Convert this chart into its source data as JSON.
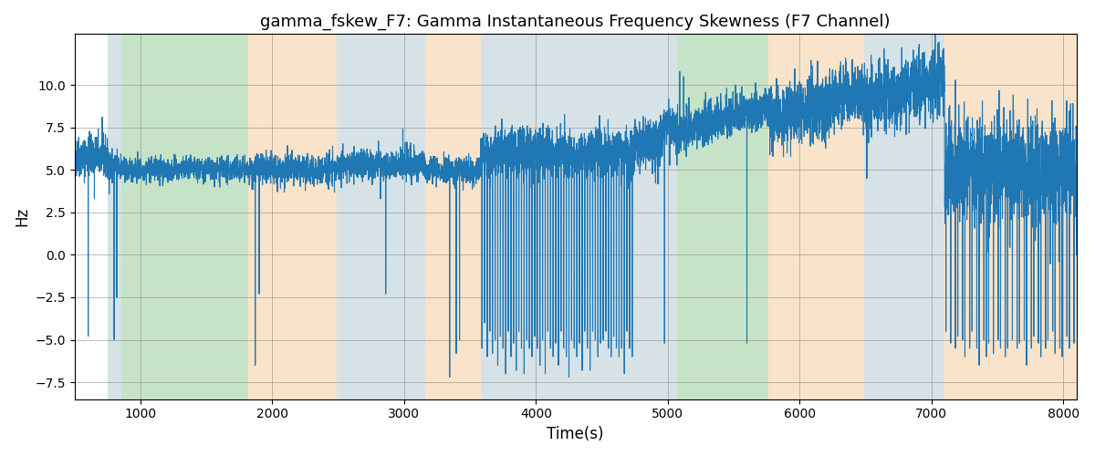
{
  "title": "gamma_fskew_F7: Gamma Instantaneous Frequency Skewness (F7 Channel)",
  "xlabel": "Time(s)",
  "ylabel": "Hz",
  "xlim": [
    500,
    8100
  ],
  "ylim": [
    -8.5,
    13
  ],
  "yticks": [
    -7.5,
    -5.0,
    -2.5,
    0.0,
    2.5,
    5.0,
    7.5,
    10.0
  ],
  "xticks": [
    1000,
    2000,
    3000,
    4000,
    5000,
    6000,
    7000,
    8000
  ],
  "bg_bands": [
    {
      "xmin": 750,
      "xmax": 855,
      "color": "#aec6cf",
      "alpha": 0.5
    },
    {
      "xmin": 855,
      "xmax": 1820,
      "color": "#90c890",
      "alpha": 0.5
    },
    {
      "xmin": 1820,
      "xmax": 2490,
      "color": "#f5c897",
      "alpha": 0.5
    },
    {
      "xmin": 2490,
      "xmax": 3160,
      "color": "#aec6cf",
      "alpha": 0.5
    },
    {
      "xmin": 3160,
      "xmax": 3580,
      "color": "#f5c897",
      "alpha": 0.5
    },
    {
      "xmin": 3580,
      "xmax": 4960,
      "color": "#aec6cf",
      "alpha": 0.5
    },
    {
      "xmin": 4960,
      "xmax": 5070,
      "color": "#aec6cf",
      "alpha": 0.5
    },
    {
      "xmin": 5070,
      "xmax": 5760,
      "color": "#90c890",
      "alpha": 0.5
    },
    {
      "xmin": 5760,
      "xmax": 6490,
      "color": "#f5c897",
      "alpha": 0.5
    },
    {
      "xmin": 6490,
      "xmax": 7100,
      "color": "#aec6cf",
      "alpha": 0.5
    },
    {
      "xmin": 7100,
      "xmax": 8100,
      "color": "#f5c897",
      "alpha": 0.5
    }
  ],
  "line_color": "#1f77b4",
  "line_width": 0.8,
  "grid": true,
  "figsize": [
    12,
    5
  ],
  "dpi": 100,
  "seed": 42
}
